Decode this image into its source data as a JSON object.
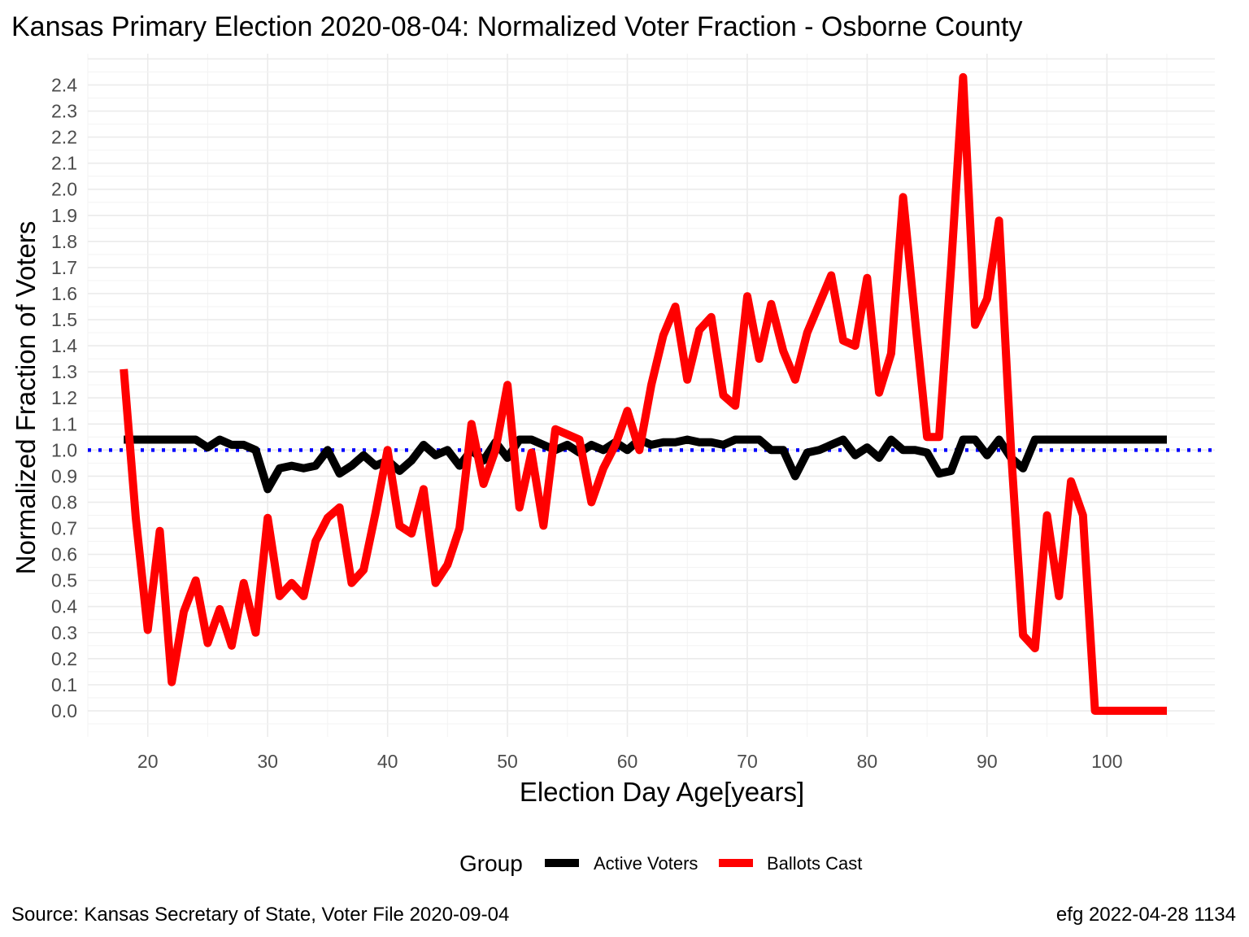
{
  "chart_data": {
    "type": "line",
    "title": "Kansas Primary Election 2020-08-04:  Normalized Voter Fraction - Osborne County",
    "xlabel": "Election Day Age[years]",
    "ylabel": "Normalized Fraction of Voters",
    "xlim": [
      15,
      109
    ],
    "ylim": [
      -0.1,
      2.52
    ],
    "x_ticks": [
      20,
      30,
      40,
      50,
      60,
      70,
      80,
      90,
      100
    ],
    "y_ticks": [
      0.0,
      0.1,
      0.2,
      0.3,
      0.4,
      0.5,
      0.6,
      0.7,
      0.8,
      0.9,
      1.0,
      1.1,
      1.2,
      1.3,
      1.4,
      1.5,
      1.6,
      1.7,
      1.8,
      1.9,
      2.0,
      2.1,
      2.2,
      2.3,
      2.4
    ],
    "grid": true,
    "reference_line": {
      "y": 1.0,
      "style": "dotted",
      "color": "#0000ff"
    },
    "legend": {
      "title": "Group",
      "position": "bottom"
    },
    "x": [
      18,
      19,
      20,
      21,
      22,
      23,
      24,
      25,
      26,
      27,
      28,
      29,
      30,
      31,
      32,
      33,
      34,
      35,
      36,
      37,
      38,
      39,
      40,
      41,
      42,
      43,
      44,
      45,
      46,
      47,
      48,
      49,
      50,
      51,
      52,
      53,
      54,
      55,
      56,
      57,
      58,
      59,
      60,
      61,
      62,
      63,
      64,
      65,
      66,
      67,
      68,
      69,
      70,
      71,
      72,
      73,
      74,
      75,
      76,
      77,
      78,
      79,
      80,
      81,
      82,
      83,
      84,
      85,
      86,
      87,
      88,
      89,
      90,
      91,
      92,
      93,
      94,
      95,
      96,
      97,
      98,
      99,
      100,
      101,
      102,
      103,
      104,
      105
    ],
    "series": [
      {
        "name": "Active Voters",
        "color": "#000000",
        "values": [
          1.04,
          1.04,
          1.04,
          1.04,
          1.04,
          1.04,
          1.04,
          1.01,
          1.04,
          1.02,
          1.02,
          1.0,
          0.85,
          0.93,
          0.94,
          0.93,
          0.94,
          1.0,
          0.91,
          0.94,
          0.98,
          0.94,
          0.96,
          0.92,
          0.96,
          1.02,
          0.98,
          1.0,
          0.94,
          1.0,
          0.96,
          1.03,
          0.97,
          1.04,
          1.04,
          1.02,
          1.0,
          1.02,
          0.99,
          1.02,
          1.0,
          1.03,
          1.0,
          1.04,
          1.02,
          1.03,
          1.03,
          1.04,
          1.03,
          1.03,
          1.02,
          1.04,
          1.04,
          1.04,
          1.0,
          1.0,
          0.9,
          0.99,
          1.0,
          1.02,
          1.04,
          0.98,
          1.01,
          0.97,
          1.04,
          1.0,
          1.0,
          0.99,
          0.91,
          0.92,
          1.04,
          1.04,
          0.98,
          1.04,
          0.97,
          0.93,
          1.04,
          1.04,
          1.04,
          1.04,
          1.04,
          1.04,
          1.04,
          1.04,
          1.04,
          1.04,
          1.04,
          1.04
        ]
      },
      {
        "name": "Ballots Cast",
        "color": "#ff0000",
        "values": [
          1.31,
          0.74,
          0.31,
          0.69,
          0.11,
          0.38,
          0.5,
          0.26,
          0.39,
          0.25,
          0.49,
          0.3,
          0.74,
          0.44,
          0.49,
          0.44,
          0.65,
          0.74,
          0.78,
          0.49,
          0.54,
          0.76,
          1.0,
          0.71,
          0.68,
          0.85,
          0.49,
          0.56,
          0.7,
          1.1,
          0.87,
          1.0,
          1.25,
          0.78,
          0.99,
          0.71,
          1.08,
          1.06,
          1.04,
          0.8,
          0.93,
          1.02,
          1.15,
          1.0,
          1.25,
          1.44,
          1.55,
          1.27,
          1.46,
          1.51,
          1.21,
          1.17,
          1.59,
          1.35,
          1.56,
          1.38,
          1.27,
          1.45,
          1.56,
          1.67,
          1.42,
          1.4,
          1.66,
          1.22,
          1.37,
          1.97,
          1.5,
          1.05,
          1.05,
          1.7,
          2.43,
          1.48,
          1.58,
          1.88,
          1.0,
          0.29,
          0.24,
          0.75,
          0.44,
          0.88,
          0.75,
          0.0,
          0.0,
          0.0,
          0.0,
          0.0,
          0.0,
          0.0
        ]
      }
    ]
  },
  "caption": {
    "source": "Source:  Kansas Secretary of State, Voter File  2020-09-04",
    "credit": "efg 2022-04-28 1134"
  }
}
